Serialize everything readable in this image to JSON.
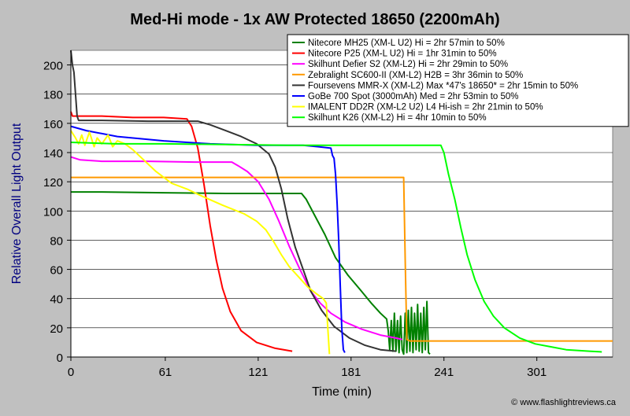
{
  "chart_data": {
    "type": "line",
    "title": "Med-Hi mode - 1x AW Protected 18650 (2200mAh)",
    "xlabel": "Time (min)",
    "ylabel": "Relative Overall Light Output",
    "xlim": [
      0,
      350
    ],
    "ylim": [
      0,
      210
    ],
    "xticks": [
      0,
      61,
      121,
      181,
      241,
      301
    ],
    "yticks": [
      0,
      20,
      40,
      60,
      80,
      100,
      120,
      140,
      160,
      180,
      200
    ],
    "grid": "horizontal",
    "legend_position": "top-right",
    "credit": "© www.flashlightreviews.ca",
    "series": [
      {
        "name": "Nitecore MH25 (XM-L U2) Hi = 2hr 57min to 50%",
        "color": "#008000",
        "points": [
          [
            0,
            113
          ],
          [
            20,
            113
          ],
          [
            60,
            112.5
          ],
          [
            100,
            112
          ],
          [
            135,
            112
          ],
          [
            149,
            112
          ],
          [
            152,
            108
          ],
          [
            157,
            98
          ],
          [
            164,
            84
          ],
          [
            171,
            68
          ],
          [
            179,
            56
          ],
          [
            187,
            46
          ],
          [
            194,
            37
          ],
          [
            200,
            30
          ],
          [
            204,
            26
          ],
          [
            205,
            18
          ],
          [
            206,
            5
          ],
          [
            207,
            25
          ],
          [
            208,
            4
          ],
          [
            209,
            30
          ],
          [
            210,
            4
          ],
          [
            211,
            25
          ],
          [
            212,
            3
          ],
          [
            213,
            28
          ],
          [
            214,
            5
          ],
          [
            215,
            2
          ],
          [
            216,
            30
          ],
          [
            217,
            3
          ],
          [
            218,
            32
          ],
          [
            219,
            4
          ],
          [
            220,
            34
          ],
          [
            221,
            3
          ],
          [
            222,
            30
          ],
          [
            223,
            5
          ],
          [
            224,
            36
          ],
          [
            225,
            4
          ],
          [
            226,
            30
          ],
          [
            227,
            3
          ],
          [
            228,
            34
          ],
          [
            229,
            5
          ],
          [
            230,
            38
          ],
          [
            231,
            3
          ],
          [
            232,
            2
          ]
        ]
      },
      {
        "name": "Nitecore P25 (XM-L U2) Hi = 1hr 31min to 50%",
        "color": "#ff0000",
        "points": [
          [
            0,
            168
          ],
          [
            1,
            165
          ],
          [
            20,
            165
          ],
          [
            40,
            164
          ],
          [
            60,
            164
          ],
          [
            75,
            163
          ],
          [
            78,
            158
          ],
          [
            82,
            143
          ],
          [
            86,
            118
          ],
          [
            90,
            90
          ],
          [
            94,
            66
          ],
          [
            98,
            47
          ],
          [
            103,
            31
          ],
          [
            110,
            18
          ],
          [
            120,
            10
          ],
          [
            132,
            6
          ],
          [
            143,
            4
          ]
        ]
      },
      {
        "name": "Skilhunt Defier S2 (XM-L2) Hi = 2hr 29min to 50%",
        "color": "#ff00ff",
        "points": [
          [
            0,
            137
          ],
          [
            6,
            135
          ],
          [
            20,
            134
          ],
          [
            50,
            134
          ],
          [
            80,
            133.5
          ],
          [
            104,
            133.5
          ],
          [
            108,
            131
          ],
          [
            114,
            127
          ],
          [
            121,
            120
          ],
          [
            128,
            108
          ],
          [
            134,
            94
          ],
          [
            141,
            76
          ],
          [
            148,
            60
          ],
          [
            155,
            45
          ],
          [
            161,
            37
          ],
          [
            168,
            30
          ],
          [
            177,
            24
          ],
          [
            188,
            19
          ],
          [
            200,
            15
          ],
          [
            210,
            13
          ],
          [
            214,
            12
          ]
        ]
      },
      {
        "name": "Zebralight SC600-II (XM-L2) H2B = 3hr 36min to 50%",
        "color": "#ff9900",
        "points": [
          [
            0,
            123
          ],
          [
            50,
            123
          ],
          [
            100,
            123
          ],
          [
            150,
            123
          ],
          [
            180,
            123
          ],
          [
            215,
            123
          ],
          [
            216,
            65
          ],
          [
            217,
            12
          ],
          [
            219,
            11
          ],
          [
            260,
            11
          ],
          [
            300,
            11
          ],
          [
            350,
            11
          ]
        ]
      },
      {
        "name": "Foursevens MMR-X (XM-L2) Max *47's 18650* = 2hr 15min to 50%",
        "color": "#333333",
        "points": [
          [
            0,
            210
          ],
          [
            1,
            200
          ],
          [
            2,
            195
          ],
          [
            3,
            180
          ],
          [
            4,
            165
          ],
          [
            5,
            162
          ],
          [
            20,
            162
          ],
          [
            50,
            161.5
          ],
          [
            82,
            161.5
          ],
          [
            90,
            159
          ],
          [
            100,
            155
          ],
          [
            110,
            151
          ],
          [
            120,
            146
          ],
          [
            128,
            139
          ],
          [
            132,
            130
          ],
          [
            136,
            115
          ],
          [
            140,
            95
          ],
          [
            145,
            75
          ],
          [
            150,
            60
          ],
          [
            155,
            45
          ],
          [
            162,
            32
          ],
          [
            170,
            21
          ],
          [
            180,
            13
          ],
          [
            190,
            8
          ],
          [
            200,
            5
          ],
          [
            210,
            4
          ]
        ]
      },
      {
        "name": "GoBe 700 Spot (3000mAh) Med = 2hr 53min to 50%",
        "color": "#0000ff",
        "points": [
          [
            0,
            158
          ],
          [
            10,
            155
          ],
          [
            30,
            151
          ],
          [
            60,
            148
          ],
          [
            90,
            146
          ],
          [
            120,
            145
          ],
          [
            150,
            145
          ],
          [
            160,
            144
          ],
          [
            168,
            143
          ],
          [
            169,
            138
          ],
          [
            170,
            136
          ],
          [
            171,
            125
          ],
          [
            172,
            105
          ],
          [
            173,
            80
          ],
          [
            174,
            50
          ],
          [
            175,
            20
          ],
          [
            176,
            5
          ],
          [
            177,
            3
          ]
        ]
      },
      {
        "name": "IMALENT DD2R (XM-L2 U2) L4 Hi-ish = 2hr 21min to 50%",
        "color": "#ffff00",
        "points": [
          [
            0,
            155
          ],
          [
            3,
            150
          ],
          [
            5,
            146
          ],
          [
            7,
            152
          ],
          [
            9,
            145
          ],
          [
            12,
            154
          ],
          [
            15,
            144
          ],
          [
            17,
            150
          ],
          [
            20,
            146
          ],
          [
            24,
            152
          ],
          [
            27,
            144
          ],
          [
            30,
            148
          ],
          [
            35,
            146
          ],
          [
            40,
            142
          ],
          [
            47,
            135
          ],
          [
            55,
            127
          ],
          [
            65,
            119
          ],
          [
            75,
            115
          ],
          [
            85,
            110
          ],
          [
            98,
            104
          ],
          [
            112,
            98
          ],
          [
            120,
            93
          ],
          [
            126,
            87
          ],
          [
            131,
            79
          ],
          [
            136,
            70
          ],
          [
            141,
            62
          ],
          [
            147,
            55
          ],
          [
            153,
            48
          ],
          [
            159,
            43
          ],
          [
            163,
            40
          ],
          [
            165,
            37
          ],
          [
            167,
            2
          ]
        ]
      },
      {
        "name": "Skilhunt K26 (XM-L2) Hi = 4hr 10min to 50%",
        "color": "#00ff00",
        "points": [
          [
            0,
            147
          ],
          [
            30,
            146
          ],
          [
            60,
            146
          ],
          [
            100,
            145.5
          ],
          [
            140,
            145
          ],
          [
            180,
            145
          ],
          [
            220,
            145
          ],
          [
            239,
            145
          ],
          [
            241,
            140
          ],
          [
            244,
            125
          ],
          [
            248,
            108
          ],
          [
            252,
            88
          ],
          [
            256,
            70
          ],
          [
            261,
            53
          ],
          [
            267,
            38
          ],
          [
            273,
            28
          ],
          [
            280,
            20
          ],
          [
            290,
            13
          ],
          [
            300,
            9
          ],
          [
            310,
            7
          ],
          [
            320,
            5
          ],
          [
            335,
            4
          ],
          [
            343,
            3.5
          ]
        ]
      }
    ]
  }
}
